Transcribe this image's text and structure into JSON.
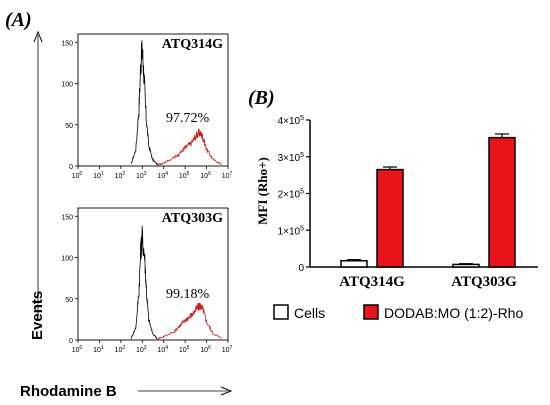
{
  "panel_a": {
    "label": "(A)",
    "y_axis_label": "Events",
    "x_axis_label": "Rhodamine B",
    "histograms": [
      {
        "sample": "ATQ314G",
        "percent": "97.72%",
        "y_ticks": [
          "0",
          "50",
          "100",
          "150"
        ],
        "x_ticks": [
          "10",
          "10",
          "10",
          "10",
          "10",
          "10",
          "10",
          "10"
        ],
        "x_tick_exponents": [
          "0",
          "1",
          "2",
          "3",
          "4",
          "5",
          "6",
          "7"
        ],
        "colors": {
          "control": "#000000",
          "treated": "#cc1a1a"
        }
      },
      {
        "sample": "ATQ303G",
        "percent": "99.18%",
        "y_ticks": [
          "0",
          "50",
          "100",
          "150"
        ],
        "x_ticks": [
          "10",
          "10",
          "10",
          "10",
          "10",
          "10",
          "10",
          "10"
        ],
        "x_tick_exponents": [
          "0",
          "1",
          "2",
          "3",
          "4",
          "5",
          "6",
          "7"
        ],
        "colors": {
          "control": "#000000",
          "treated": "#cc1a1a"
        }
      }
    ]
  },
  "panel_b": {
    "label": "(B)",
    "legend": {
      "cells": "Cells",
      "dodab": "DODAB:MO (1:2)-Rho"
    }
  },
  "chart_data": [
    {
      "type": "line",
      "panel": "A-top",
      "title": "ATQ314G",
      "xlabel": "Rhodamine B",
      "ylabel": "Events",
      "x_scale": "log",
      "xlim": [
        1,
        10000000
      ],
      "ylim": [
        0,
        160
      ],
      "series": [
        {
          "x": [
            300,
            500,
            700,
            850,
            1000,
            1200,
            1500,
            2000,
            3000,
            5000
          ],
          "y": [
            2,
            20,
            70,
            125,
            140,
            110,
            60,
            25,
            8,
            2
          ]
        },
        {
          "x": [
            5000,
            10000,
            30000,
            60000,
            100000,
            200000,
            350000,
            500000,
            700000,
            1000000,
            2000000,
            5000000
          ],
          "y": [
            1,
            4,
            10,
            16,
            22,
            28,
            38,
            40,
            34,
            20,
            8,
            2
          ]
        }
      ],
      "annotations": [
        "97.72%"
      ]
    },
    {
      "type": "line",
      "panel": "A-bottom",
      "title": "ATQ303G",
      "xlabel": "Rhodamine B",
      "ylabel": "Events",
      "x_scale": "log",
      "xlim": [
        1,
        10000000
      ],
      "ylim": [
        0,
        160
      ],
      "series": [
        {
          "x": [
            300,
            500,
            700,
            850,
            1000,
            1300,
            1600,
            2000,
            3000,
            5000
          ],
          "y": [
            2,
            15,
            60,
            110,
            125,
            100,
            55,
            25,
            8,
            2
          ]
        },
        {
          "x": [
            5000,
            10000,
            30000,
            60000,
            100000,
            200000,
            350000,
            500000,
            700000,
            1000000,
            2000000,
            5000000
          ],
          "y": [
            1,
            4,
            10,
            18,
            24,
            30,
            38,
            42,
            36,
            22,
            8,
            2
          ]
        }
      ],
      "annotations": [
        "99.18%"
      ]
    },
    {
      "type": "bar",
      "panel": "B",
      "categories": [
        "ATQ314G",
        "ATQ303G"
      ],
      "series": [
        {
          "name": "Cells",
          "values": [
            17000,
            7000
          ],
          "errors": [
            3000,
            2000
          ],
          "color": "#ffffff"
        },
        {
          "name": "DODAB:MO (1:2)-Rho",
          "values": [
            265000,
            352000
          ],
          "errors": [
            7000,
            10000
          ],
          "color": "#e8141a"
        }
      ],
      "ylabel": "MFI (Rho+)",
      "ylim": [
        0,
        400000
      ],
      "y_ticks": [
        "0",
        "1×10",
        "2×10",
        "3×10",
        "4×10"
      ],
      "y_tick_exponents": [
        "",
        "5",
        "5",
        "5",
        "5"
      ],
      "legend_position": "bottom"
    }
  ]
}
